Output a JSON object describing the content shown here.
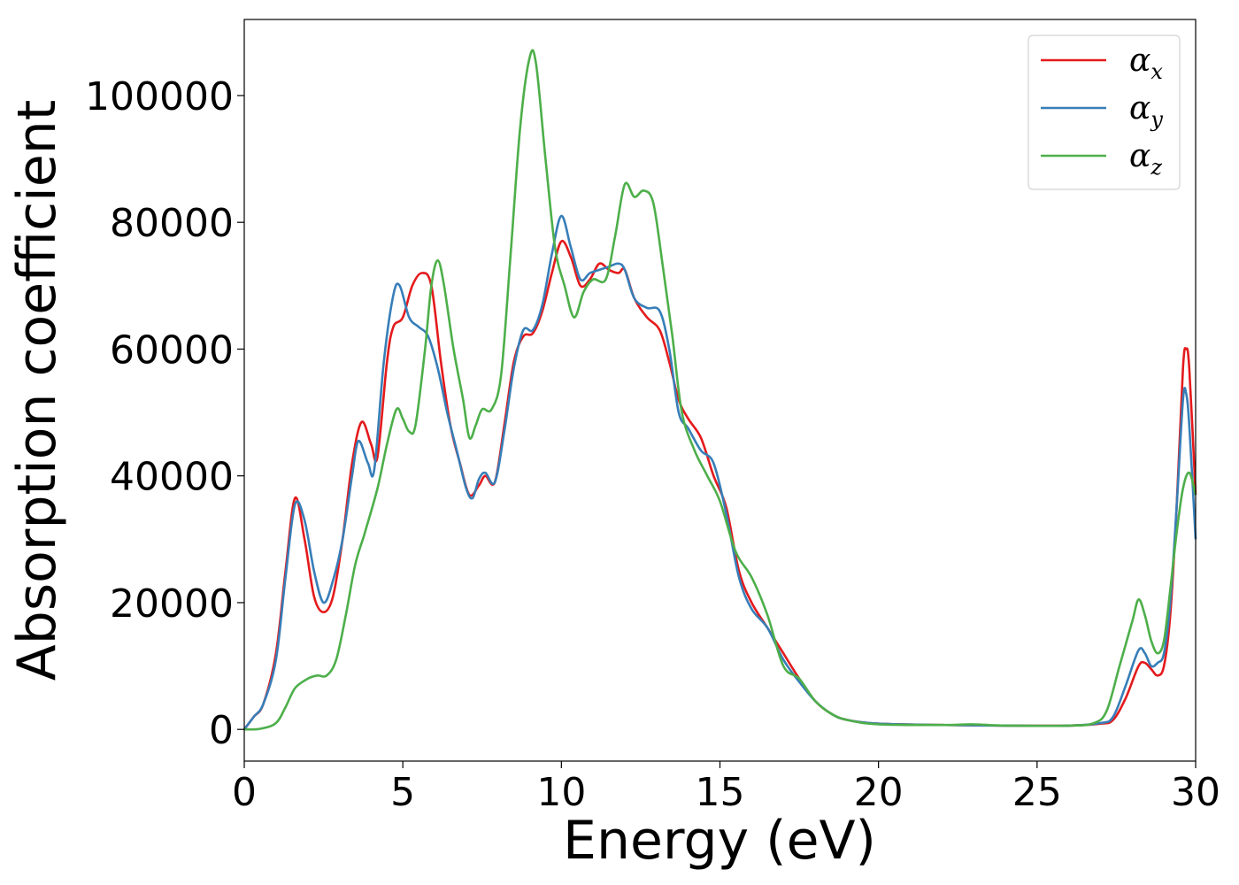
{
  "chart_data": {
    "type": "line",
    "title": "",
    "xlabel": "Energy (eV)",
    "ylabel": "Absorption coefficient",
    "xlim": [
      0,
      30
    ],
    "ylim": [
      -5000,
      112000
    ],
    "xticks": [
      0,
      5,
      10,
      15,
      20,
      25,
      30
    ],
    "yticks": [
      0,
      20000,
      40000,
      60000,
      80000,
      100000
    ],
    "xtick_labels": [
      "0",
      "5",
      "10",
      "15",
      "20",
      "25",
      "30"
    ],
    "ytick_labels": [
      "0",
      "20000",
      "40000",
      "60000",
      "80000",
      "100000"
    ],
    "grid": false,
    "legend": {
      "placement": "top-right"
    },
    "series": [
      {
        "name": "α_x",
        "label_base": "α",
        "label_sub": "x",
        "color": "#e41a1c",
        "points": [
          [
            0,
            0
          ],
          [
            0.3,
            2000
          ],
          [
            0.6,
            4000
          ],
          [
            1.0,
            12000
          ],
          [
            1.3,
            25000
          ],
          [
            1.6,
            36500
          ],
          [
            1.9,
            30000
          ],
          [
            2.2,
            21000
          ],
          [
            2.5,
            18500
          ],
          [
            2.8,
            21000
          ],
          [
            3.1,
            30000
          ],
          [
            3.4,
            42000
          ],
          [
            3.7,
            48500
          ],
          [
            4.0,
            45000
          ],
          [
            4.2,
            43000
          ],
          [
            4.5,
            58000
          ],
          [
            4.7,
            63500
          ],
          [
            5.0,
            65000
          ],
          [
            5.3,
            70000
          ],
          [
            5.6,
            72000
          ],
          [
            5.9,
            70000
          ],
          [
            6.2,
            58000
          ],
          [
            6.5,
            48000
          ],
          [
            6.8,
            42000
          ],
          [
            7.1,
            37000
          ],
          [
            7.4,
            38500
          ],
          [
            7.6,
            40000
          ],
          [
            7.9,
            39000
          ],
          [
            8.2,
            48000
          ],
          [
            8.5,
            58000
          ],
          [
            8.8,
            62000
          ],
          [
            9.1,
            62500
          ],
          [
            9.4,
            66000
          ],
          [
            9.7,
            72000
          ],
          [
            10.0,
            77000
          ],
          [
            10.3,
            74500
          ],
          [
            10.6,
            70000
          ],
          [
            10.9,
            71000
          ],
          [
            11.2,
            73500
          ],
          [
            11.5,
            72500
          ],
          [
            11.8,
            72000
          ],
          [
            12.0,
            72500
          ],
          [
            12.3,
            68000
          ],
          [
            12.7,
            65000
          ],
          [
            13.1,
            63000
          ],
          [
            13.4,
            58000
          ],
          [
            13.7,
            52000
          ],
          [
            14.0,
            49000
          ],
          [
            14.4,
            46000
          ],
          [
            14.8,
            40000
          ],
          [
            15.2,
            35000
          ],
          [
            15.6,
            25000
          ],
          [
            16.0,
            20000
          ],
          [
            16.5,
            16000
          ],
          [
            17.0,
            12000
          ],
          [
            17.5,
            8000
          ],
          [
            18.0,
            4500
          ],
          [
            18.5,
            2500
          ],
          [
            19.0,
            1500
          ],
          [
            20.0,
            900
          ],
          [
            22.0,
            700
          ],
          [
            24.0,
            600
          ],
          [
            26.0,
            600
          ],
          [
            27.0,
            900
          ],
          [
            27.4,
            1500
          ],
          [
            27.8,
            5000
          ],
          [
            28.2,
            10000
          ],
          [
            28.4,
            10500
          ],
          [
            28.6,
            9500
          ],
          [
            28.8,
            8500
          ],
          [
            29.0,
            10000
          ],
          [
            29.2,
            18000
          ],
          [
            29.4,
            35000
          ],
          [
            29.6,
            57000
          ],
          [
            29.7,
            60000
          ],
          [
            29.8,
            57000
          ],
          [
            30.0,
            37000
          ]
        ]
      },
      {
        "name": "α_y",
        "label_base": "α",
        "label_sub": "y",
        "color": "#377eb8",
        "points": [
          [
            0,
            0
          ],
          [
            0.3,
            2000
          ],
          [
            0.6,
            4000
          ],
          [
            1.0,
            11000
          ],
          [
            1.3,
            24000
          ],
          [
            1.6,
            35500
          ],
          [
            1.9,
            33000
          ],
          [
            2.2,
            25000
          ],
          [
            2.5,
            20000
          ],
          [
            2.8,
            23500
          ],
          [
            3.1,
            30000
          ],
          [
            3.4,
            40000
          ],
          [
            3.6,
            45500
          ],
          [
            3.9,
            42000
          ],
          [
            4.1,
            41000
          ],
          [
            4.4,
            58000
          ],
          [
            4.7,
            68500
          ],
          [
            4.9,
            70000
          ],
          [
            5.2,
            65000
          ],
          [
            5.5,
            63500
          ],
          [
            5.8,
            62000
          ],
          [
            6.1,
            57000
          ],
          [
            6.4,
            50000
          ],
          [
            6.7,
            44000
          ],
          [
            7.0,
            38000
          ],
          [
            7.2,
            36500
          ],
          [
            7.4,
            39500
          ],
          [
            7.6,
            40500
          ],
          [
            7.9,
            39000
          ],
          [
            8.2,
            47000
          ],
          [
            8.5,
            57000
          ],
          [
            8.8,
            63000
          ],
          [
            9.1,
            63000
          ],
          [
            9.4,
            67000
          ],
          [
            9.7,
            75000
          ],
          [
            10.0,
            81000
          ],
          [
            10.3,
            76000
          ],
          [
            10.6,
            71000
          ],
          [
            10.9,
            72000
          ],
          [
            11.2,
            72500
          ],
          [
            11.5,
            73000
          ],
          [
            11.8,
            73500
          ],
          [
            12.0,
            72500
          ],
          [
            12.3,
            68000
          ],
          [
            12.7,
            66500
          ],
          [
            13.1,
            66000
          ],
          [
            13.4,
            60000
          ],
          [
            13.7,
            50000
          ],
          [
            14.0,
            47500
          ],
          [
            14.4,
            44000
          ],
          [
            14.8,
            42000
          ],
          [
            15.2,
            34000
          ],
          [
            15.6,
            24000
          ],
          [
            16.0,
            19000
          ],
          [
            16.5,
            16000
          ],
          [
            17.0,
            11000
          ],
          [
            17.5,
            7500
          ],
          [
            18.0,
            4500
          ],
          [
            18.5,
            2500
          ],
          [
            19.0,
            1500
          ],
          [
            20.0,
            900
          ],
          [
            22.0,
            700
          ],
          [
            24.0,
            600
          ],
          [
            26.0,
            600
          ],
          [
            27.0,
            1000
          ],
          [
            27.4,
            2000
          ],
          [
            27.8,
            7000
          ],
          [
            28.2,
            12500
          ],
          [
            28.4,
            12000
          ],
          [
            28.6,
            10000
          ],
          [
            28.8,
            10500
          ],
          [
            29.0,
            12000
          ],
          [
            29.2,
            20000
          ],
          [
            29.4,
            35000
          ],
          [
            29.6,
            52000
          ],
          [
            29.7,
            53000
          ],
          [
            29.8,
            48000
          ],
          [
            30.0,
            30000
          ]
        ]
      },
      {
        "name": "α_z",
        "label_base": "α",
        "label_sub": "z",
        "color": "#4daf4a",
        "points": [
          [
            0,
            0
          ],
          [
            0.5,
            100
          ],
          [
            1.0,
            1000
          ],
          [
            1.3,
            3500
          ],
          [
            1.6,
            6500
          ],
          [
            2.0,
            8000
          ],
          [
            2.3,
            8500
          ],
          [
            2.6,
            8500
          ],
          [
            2.9,
            11000
          ],
          [
            3.2,
            18000
          ],
          [
            3.5,
            26000
          ],
          [
            3.8,
            31000
          ],
          [
            4.2,
            38000
          ],
          [
            4.5,
            45000
          ],
          [
            4.8,
            50500
          ],
          [
            5.0,
            49000
          ],
          [
            5.2,
            47000
          ],
          [
            5.4,
            48000
          ],
          [
            5.7,
            60000
          ],
          [
            5.9,
            70000
          ],
          [
            6.1,
            74000
          ],
          [
            6.3,
            70000
          ],
          [
            6.6,
            60000
          ],
          [
            6.9,
            52000
          ],
          [
            7.1,
            46000
          ],
          [
            7.3,
            48000
          ],
          [
            7.5,
            50500
          ],
          [
            7.8,
            50500
          ],
          [
            8.1,
            56000
          ],
          [
            8.4,
            75000
          ],
          [
            8.7,
            95000
          ],
          [
            9.0,
            106000
          ],
          [
            9.2,
            105000
          ],
          [
            9.5,
            90000
          ],
          [
            9.8,
            76000
          ],
          [
            10.1,
            70000
          ],
          [
            10.4,
            65000
          ],
          [
            10.7,
            69000
          ],
          [
            11.0,
            71000
          ],
          [
            11.4,
            71000
          ],
          [
            11.7,
            78000
          ],
          [
            12.0,
            86000
          ],
          [
            12.3,
            84000
          ],
          [
            12.6,
            85000
          ],
          [
            12.9,
            83000
          ],
          [
            13.2,
            73000
          ],
          [
            13.5,
            62000
          ],
          [
            13.8,
            50000
          ],
          [
            14.2,
            44000
          ],
          [
            14.6,
            40000
          ],
          [
            15.0,
            36000
          ],
          [
            15.5,
            28000
          ],
          [
            16.0,
            24000
          ],
          [
            16.5,
            18000
          ],
          [
            17.0,
            10000
          ],
          [
            17.5,
            8000
          ],
          [
            18.0,
            4500
          ],
          [
            18.5,
            2500
          ],
          [
            19.0,
            1500
          ],
          [
            20.0,
            800
          ],
          [
            22.0,
            700
          ],
          [
            23.0,
            800
          ],
          [
            24.0,
            600
          ],
          [
            26.0,
            600
          ],
          [
            26.8,
            1000
          ],
          [
            27.2,
            3000
          ],
          [
            27.6,
            10000
          ],
          [
            28.0,
            17000
          ],
          [
            28.2,
            20500
          ],
          [
            28.4,
            18000
          ],
          [
            28.6,
            14000
          ],
          [
            28.8,
            12000
          ],
          [
            29.0,
            14000
          ],
          [
            29.2,
            22000
          ],
          [
            29.4,
            31000
          ],
          [
            29.6,
            38000
          ],
          [
            29.8,
            40500
          ],
          [
            30.0,
            37000
          ]
        ]
      }
    ]
  }
}
